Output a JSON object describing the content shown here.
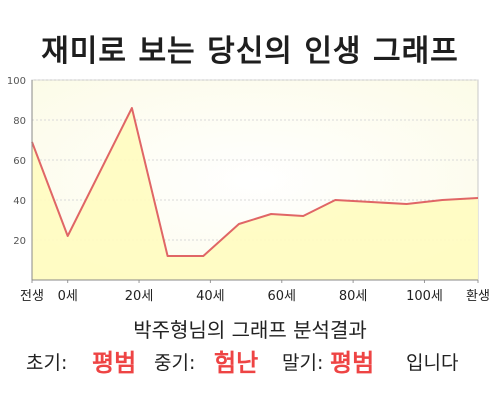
{
  "title": "재미로 보는 당신의 인생 그래프",
  "subtitle": "박주형님의 그래프 분석결과",
  "summary": {
    "early_label": "초기:",
    "early_value": "평범",
    "middle_label": "중기:",
    "middle_value": "험난",
    "late_label": "말기:",
    "late_value": "평범",
    "ending": "입니다"
  },
  "colors": {
    "line": "#e06666",
    "fill": "#fffcc0",
    "accent": "#ee4444"
  },
  "chart_data": {
    "type": "area",
    "x_ticks": [
      {
        "x": -10,
        "label": "전생"
      },
      {
        "x": 0,
        "label": "0세"
      },
      {
        "x": 20,
        "label": "20세"
      },
      {
        "x": 40,
        "label": "40세"
      },
      {
        "x": 60,
        "label": "60세"
      },
      {
        "x": 80,
        "label": "80세"
      },
      {
        "x": 100,
        "label": "100세"
      },
      {
        "x": 115,
        "label": "환생"
      }
    ],
    "y_ticks": [
      20,
      40,
      60,
      80,
      100
    ],
    "ylim": [
      0,
      100
    ],
    "xlim": [
      -10,
      115
    ],
    "series": [
      {
        "values": [
          {
            "x": -10,
            "y": 69
          },
          {
            "x": 0,
            "y": 22
          },
          {
            "x": 18,
            "y": 86
          },
          {
            "x": 28,
            "y": 12
          },
          {
            "x": 38,
            "y": 12
          },
          {
            "x": 48,
            "y": 28
          },
          {
            "x": 57,
            "y": 33
          },
          {
            "x": 66,
            "y": 32
          },
          {
            "x": 75,
            "y": 40
          },
          {
            "x": 85,
            "y": 39
          },
          {
            "x": 95,
            "y": 38
          },
          {
            "x": 105,
            "y": 40
          },
          {
            "x": 115,
            "y": 41
          }
        ]
      }
    ],
    "grid": true
  }
}
